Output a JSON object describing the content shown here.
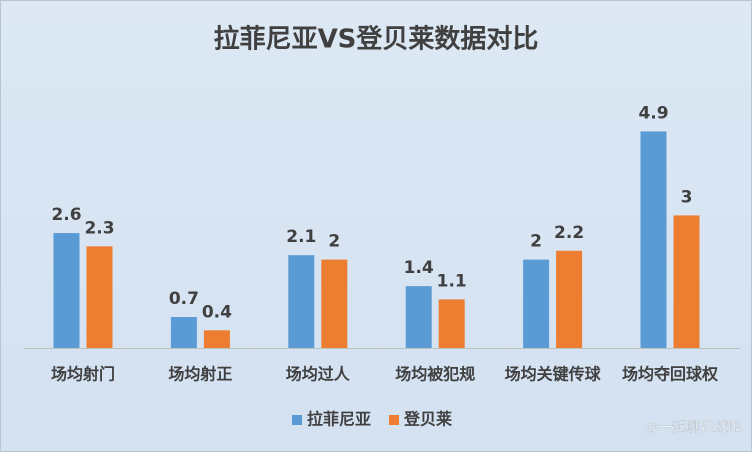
{
  "chart_data": {
    "type": "bar",
    "title": "拉菲尼亚VS登贝莱数据对比",
    "categories": [
      "场均射门",
      "场均射正",
      "场均过人",
      "场均被犯规",
      "场均关键传球",
      "场均夺回球权"
    ],
    "series": [
      {
        "name": "拉菲尼亚",
        "color": "#5b9bd5",
        "values": [
          2.6,
          0.7,
          2.1,
          1.4,
          2,
          4.9
        ]
      },
      {
        "name": "登贝莱",
        "color": "#ed7d31",
        "values": [
          2.3,
          0.4,
          2,
          1.1,
          2.2,
          3
        ]
      }
    ],
    "ylim": [
      0,
      5
    ],
    "legend": "bottom",
    "watermark": "@一起聊足球吧"
  }
}
